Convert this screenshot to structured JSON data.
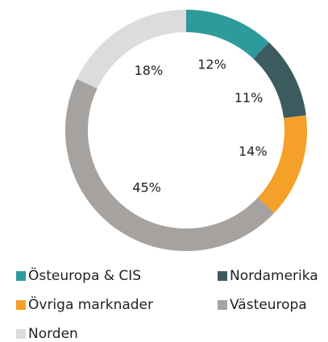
{
  "chart_data": {
    "type": "donut",
    "categories": [
      "Östeuropa & CIS",
      "Nordamerika",
      "Övriga marknader",
      "Västeuropa",
      "Norden"
    ],
    "values": [
      12,
      11,
      14,
      45,
      18
    ],
    "value_labels": [
      "12%",
      "11%",
      "14%",
      "45%",
      "18%"
    ],
    "colors": [
      "#2e9a9c",
      "#3c5b5e",
      "#f5a028",
      "#a5a2a0",
      "#dcdcdc"
    ],
    "legend": "bottom"
  }
}
